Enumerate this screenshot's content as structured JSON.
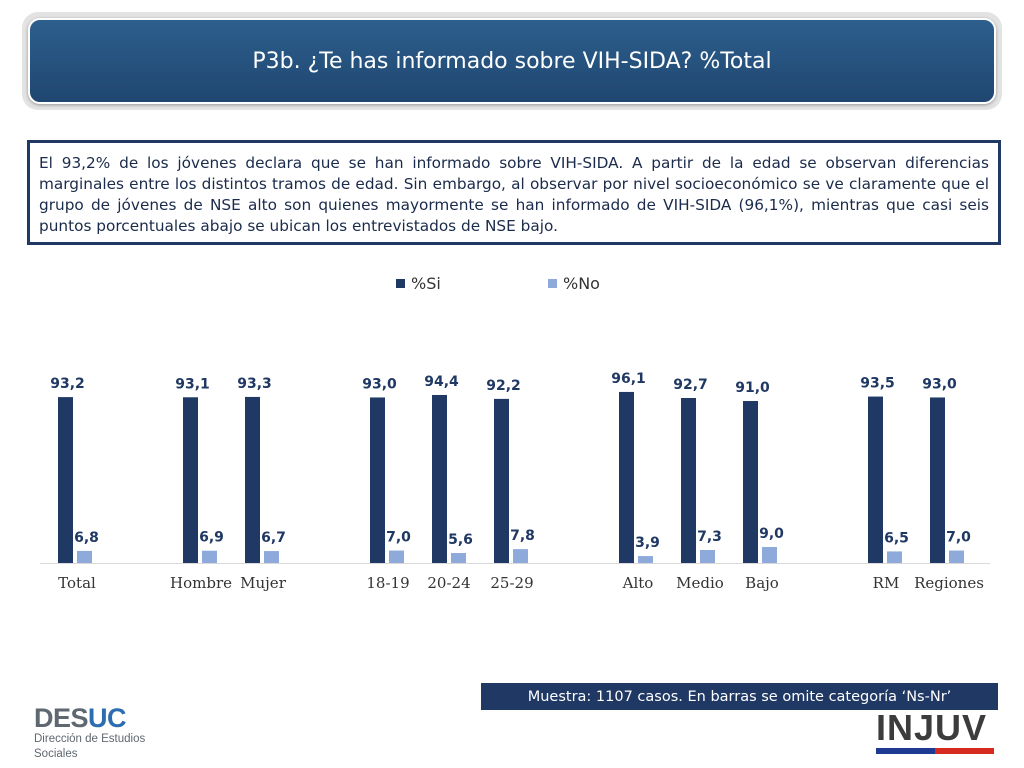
{
  "header": {
    "title": "P3b. ¿Te has informado sobre VIH-SIDA? %Total"
  },
  "summary": {
    "text": "El 93,2% de los jóvenes declara que se han informado sobre VIH-SIDA. A partir de la edad se observan diferencias marginales entre los distintos tramos de edad. Sin embargo, al observar por nivel socioeconómico se ve claramente que el grupo de jóvenes de NSE alto son quienes mayormente se han informado de VIH-SIDA (96,1%), mientras que casi seis puntos porcentuales abajo se ubican los entrevistados de NSE bajo."
  },
  "legend": [
    {
      "label": "%Si",
      "color": "#1f3864"
    },
    {
      "label": "%No",
      "color": "#8eaadb"
    }
  ],
  "chart_data": {
    "type": "bar",
    "categories": [
      "Total",
      "Hombre",
      "Mujer",
      "18-19",
      "20-24",
      "25-29",
      "Alto",
      "Medio",
      "Bajo",
      "RM",
      "Regiones"
    ],
    "series": [
      {
        "name": "%Si",
        "color": "#1f3864",
        "values": [
          93.2,
          93.1,
          93.3,
          93.0,
          94.4,
          92.2,
          96.1,
          92.7,
          91.0,
          93.5,
          93.0
        ],
        "labels": [
          "93,2",
          "93,1",
          "93,3",
          "93,0",
          "94,4",
          "92,2",
          "96,1",
          "92,7",
          "91,0",
          "93,5",
          "93,0"
        ]
      },
      {
        "name": "%No",
        "color": "#8eaadb",
        "values": [
          6.8,
          6.9,
          6.7,
          7.0,
          5.6,
          7.8,
          3.9,
          7.3,
          9.0,
          6.5,
          7.0
        ],
        "labels": [
          "6,8",
          "6,9",
          "6,7",
          "7,0",
          "5,6",
          "7,8",
          "3,9",
          "7,3",
          "9,0",
          "6,5",
          "7,0"
        ]
      }
    ],
    "legend_position": "top",
    "grid": false,
    "ylim": [
      0,
      100
    ]
  },
  "footer": {
    "sample_note": "Muestra: 1107 casos. En barras se omite categoría ‘Ns-Nr’"
  },
  "logos": {
    "desuc": {
      "name_part1": "DES",
      "name_part2": "UC",
      "subtitle": "Dirección de Estudios Sociales"
    },
    "injuv": {
      "name": "INJUV"
    }
  }
}
